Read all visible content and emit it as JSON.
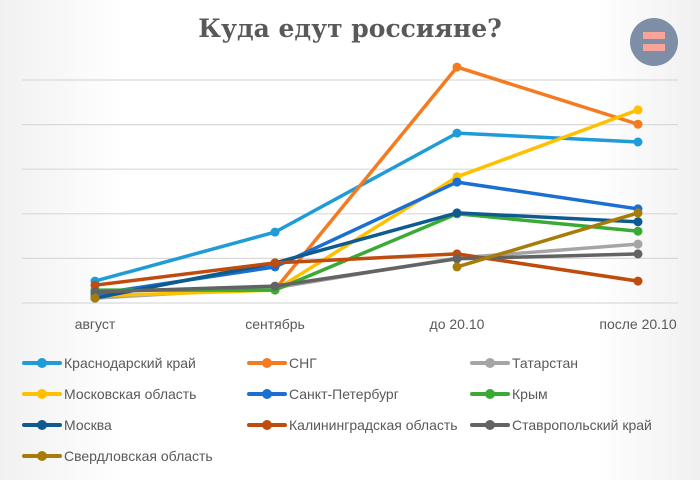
{
  "header": {
    "title": "Куда едут россияне?",
    "logo_icon": "equals-logo-icon",
    "logo_colors": {
      "circle": "#7d8ea6",
      "bars": "#f7a49a"
    }
  },
  "chart_data": {
    "type": "line",
    "title": "Куда едут россияне?",
    "xlabel": "",
    "ylabel": "",
    "categories": [
      "август",
      "сентябрь",
      "до 20.10",
      "после 20.10"
    ],
    "ylim": [
      0,
      5
    ],
    "grid": true,
    "y_ticks_visible": false,
    "legend_position": "bottom",
    "series": [
      {
        "name": "Краснодарский край",
        "color": "#1f9bd7",
        "values": [
          0.49,
          1.59,
          3.81,
          3.61
        ]
      },
      {
        "name": "СНГ",
        "color": "#f47b20",
        "values": [
          null,
          0.3,
          5.29,
          4.01
        ]
      },
      {
        "name": "Татарстан",
        "color": "#a5a5a5",
        "values": [
          0.11,
          0.34,
          1.01,
          1.32
        ]
      },
      {
        "name": "Московская область",
        "color": "#ffc000",
        "values": [
          0.16,
          0.29,
          2.83,
          4.33
        ]
      },
      {
        "name": "Санкт-Петербург",
        "color": "#1a6fd1",
        "values": [
          0.2,
          0.81,
          2.71,
          2.11
        ]
      },
      {
        "name": "Крым",
        "color": "#3aaa35",
        "values": [
          0.29,
          0.29,
          2.0,
          1.61
        ]
      },
      {
        "name": "Москва",
        "color": "#0f5a8f",
        "values": [
          0.11,
          0.9,
          2.02,
          1.82
        ]
      },
      {
        "name": "Калининградская область",
        "color": "#bf4b0c",
        "values": [
          0.4,
          0.9,
          1.1,
          0.49
        ]
      },
      {
        "name": "Ставропольский край",
        "color": "#636363",
        "values": [
          0.25,
          0.38,
          0.99,
          1.1
        ]
      },
      {
        "name": "Свердловская область",
        "color": "#a77c0a",
        "values": [
          0.11,
          null,
          0.81,
          2.02
        ]
      }
    ]
  }
}
